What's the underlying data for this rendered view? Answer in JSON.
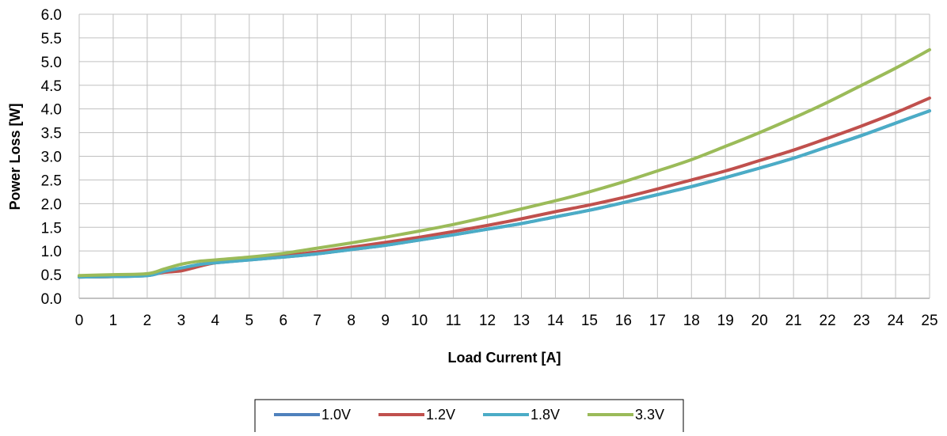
{
  "chart_data": {
    "type": "line",
    "xlabel": "Load Current [A]",
    "ylabel": "Power Loss [W]",
    "xlim": [
      0,
      25
    ],
    "ylim": [
      0,
      6
    ],
    "x_ticks": [
      "0",
      "1",
      "2",
      "3",
      "4",
      "5",
      "6",
      "7",
      "8",
      "9",
      "10",
      "11",
      "12",
      "13",
      "14",
      "15",
      "16",
      "17",
      "18",
      "19",
      "20",
      "21",
      "22",
      "23",
      "24",
      "25"
    ],
    "y_ticks": [
      "0.0",
      "0.5",
      "1.0",
      "1.5",
      "2.0",
      "2.5",
      "3.0",
      "3.5",
      "4.0",
      "4.5",
      "5.0",
      "5.5",
      "6.0"
    ],
    "grid": true,
    "legend_position": "bottom",
    "x": [
      0,
      1,
      2,
      2.5,
      3,
      3.5,
      4,
      5,
      6,
      7,
      8,
      9,
      10,
      11,
      12,
      13,
      14,
      15,
      16,
      17,
      18,
      19,
      20,
      21,
      22,
      23,
      24,
      25
    ],
    "series": [
      {
        "name": "1.0V",
        "color": "#4F81BD",
        "values": [
          0.45,
          0.46,
          0.48,
          0.56,
          0.63,
          0.71,
          0.75,
          0.81,
          0.87,
          0.94,
          1.03,
          1.12,
          1.23,
          1.34,
          1.46,
          1.58,
          1.72,
          1.86,
          2.02,
          2.19,
          2.36,
          2.55,
          2.75,
          2.96,
          3.2,
          3.44,
          3.7,
          3.96
        ]
      },
      {
        "name": "1.2V",
        "color": "#C0504D",
        "values": [
          0.45,
          0.46,
          0.5,
          0.55,
          0.58,
          0.67,
          0.75,
          0.83,
          0.9,
          0.98,
          1.08,
          1.18,
          1.29,
          1.41,
          1.54,
          1.68,
          1.83,
          1.97,
          2.13,
          2.31,
          2.5,
          2.69,
          2.91,
          3.13,
          3.38,
          3.64,
          3.92,
          4.23
        ]
      },
      {
        "name": "1.8V",
        "color": "#4BACC6",
        "values": [
          0.45,
          0.46,
          0.48,
          0.57,
          0.64,
          0.71,
          0.75,
          0.81,
          0.87,
          0.94,
          1.03,
          1.12,
          1.23,
          1.34,
          1.46,
          1.58,
          1.72,
          1.86,
          2.02,
          2.19,
          2.36,
          2.55,
          2.75,
          2.96,
          3.2,
          3.44,
          3.7,
          3.96
        ]
      },
      {
        "name": "3.3V",
        "color": "#9BBB59",
        "values": [
          0.48,
          0.5,
          0.52,
          0.62,
          0.72,
          0.78,
          0.81,
          0.87,
          0.95,
          1.06,
          1.17,
          1.29,
          1.42,
          1.56,
          1.72,
          1.89,
          2.06,
          2.25,
          2.46,
          2.69,
          2.93,
          3.21,
          3.5,
          3.81,
          4.14,
          4.5,
          4.86,
          5.25
        ]
      }
    ]
  }
}
